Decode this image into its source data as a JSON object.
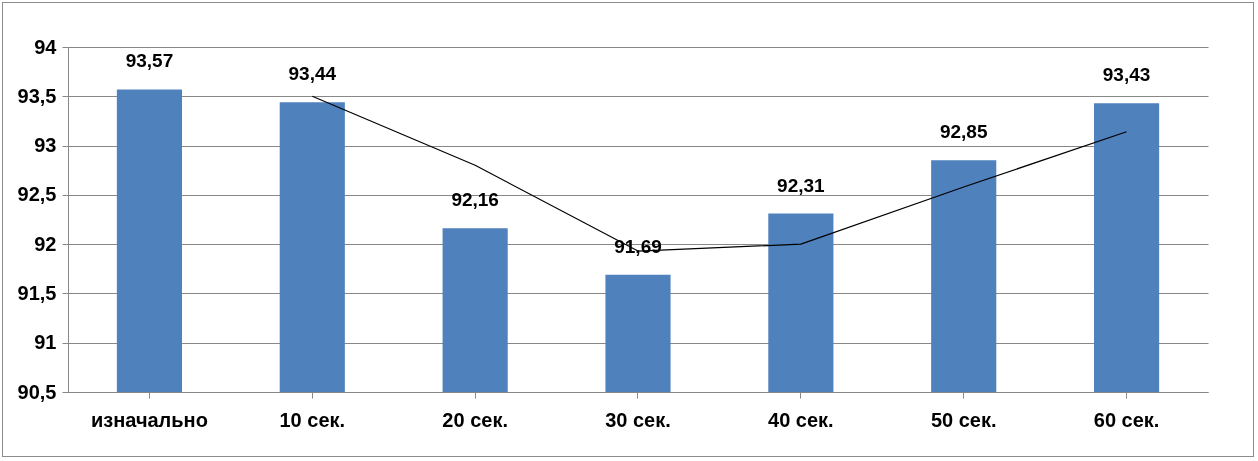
{
  "chart_data": {
    "type": "bar",
    "categories": [
      "изначально",
      "10 сек.",
      "20 сек.",
      "30 сек.",
      "40 сек.",
      "50 сек.",
      "60 сек."
    ],
    "series": [
      {
        "color": "#4f81bd",
        "values": [
          93.57,
          93.44,
          92.16,
          91.69,
          92.31,
          92.85,
          93.43
        ],
        "value_labels": [
          "93,57",
          "93,44",
          "92,16",
          "91,69",
          "92,31",
          "92,85",
          "93,43"
        ]
      },
      {
        "type": "line",
        "color": "#000000",
        "values": [
          null,
          93.5,
          92.8,
          91.93,
          92.0,
          92.58,
          93.14
        ]
      }
    ],
    "ylim": [
      90.5,
      94
    ],
    "yticks": [
      {
        "value": 90.5,
        "label": "90,5"
      },
      {
        "value": 91,
        "label": "91"
      },
      {
        "value": 91.5,
        "label": "91,5"
      },
      {
        "value": 92,
        "label": "92"
      },
      {
        "value": 92.5,
        "label": "92,5"
      },
      {
        "value": 93,
        "label": "93"
      },
      {
        "value": 93.5,
        "label": "93,5"
      },
      {
        "value": 94,
        "label": "94"
      }
    ],
    "grid": "y"
  }
}
